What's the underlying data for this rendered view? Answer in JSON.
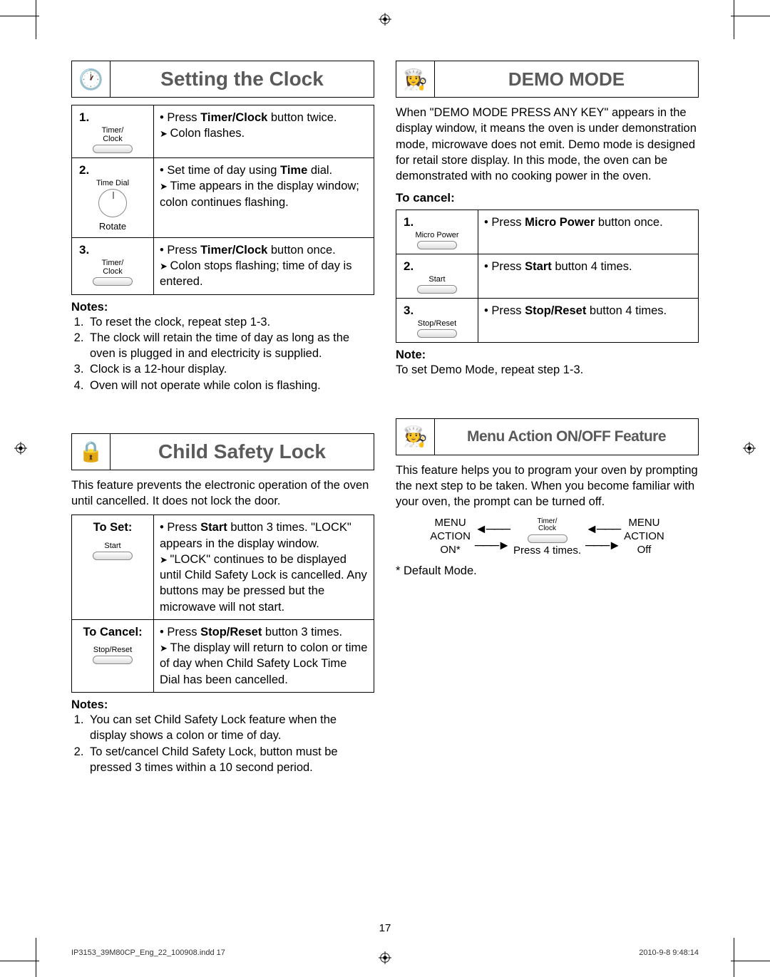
{
  "page_number": "17",
  "footer": {
    "doc": "IP3153_39M80CP_Eng_22_100908.indd   17",
    "stamp": "2010-9-8   9:48:14"
  },
  "colors": {
    "title_gray": "#5a5a5a",
    "border": "#000000",
    "btn_border": "#888888"
  },
  "clock": {
    "title": "Setting the Clock",
    "steps": [
      {
        "num": "1.",
        "control_label": "Timer/\nClock",
        "control_kind": "button",
        "lines": [
          {
            "t": "bullet",
            "text": "Press <b>Timer/Clock</b> button twice."
          },
          {
            "t": "arrow",
            "text": "Colon flashes."
          }
        ]
      },
      {
        "num": "2.",
        "control_label": "Time Dial",
        "control_kind": "dial",
        "control_below": "Rotate",
        "lines": [
          {
            "t": "bullet",
            "text": "Set time of day using <b>Time</b> dial."
          },
          {
            "t": "arrow",
            "text": "Time appears in the display window; colon continues flashing."
          }
        ]
      },
      {
        "num": "3.",
        "control_label": "Timer/\nClock",
        "control_kind": "button",
        "lines": [
          {
            "t": "bullet",
            "text": "Press <b>Timer/Clock</b> button once."
          },
          {
            "t": "arrow",
            "text": "Colon stops flashing; time of day is entered."
          }
        ]
      }
    ],
    "notes_heading": "Notes:",
    "notes": [
      "To reset the clock, repeat step 1-3.",
      "The clock will retain the time of day as long as the oven is plugged in and electricity is supplied.",
      "Clock is a 12-hour display.",
      "Oven will not operate while colon is flashing."
    ]
  },
  "childlock": {
    "title": "Child Safety Lock",
    "intro": "This feature prevents the electronic operation of the oven until cancelled. It does not lock the door.",
    "rows": [
      {
        "head": "To Set:",
        "btn_label": "Start",
        "lines": [
          {
            "t": "bullet",
            "text": "Press <b>Start</b> button 3 times. \"LOCK\" appears in the display window."
          },
          {
            "t": "arrow",
            "text": "\"LOCK\" continues to be displayed until Child Safety Lock is cancelled. Any buttons may be pressed but the microwave will not start."
          }
        ]
      },
      {
        "head": "To Cancel:",
        "btn_label": "Stop/Reset",
        "lines": [
          {
            "t": "bullet",
            "text": "Press <b>Stop/Reset</b> button 3 times."
          },
          {
            "t": "arrow",
            "text": "The display will return to colon or time of day when Child Safety Lock Time Dial has been cancelled."
          }
        ]
      }
    ],
    "notes_heading": "Notes:",
    "notes": [
      "You can set Child Safety Lock feature when the display shows a colon or time of day.",
      "To set/cancel Child Safety Lock, button must be pressed 3 times within a 10 second period."
    ]
  },
  "demo": {
    "title": "DEMO MODE",
    "intro": "When \"DEMO MODE PRESS ANY KEY\" appears in the display window, it means the oven is under demonstration mode, microwave does not emit. Demo mode is designed for retail store display. In this mode, the oven can be demonstrated with no cooking power in the oven.",
    "cancel_heading": "To cancel:",
    "steps": [
      {
        "num": "1.",
        "control_label": "Micro Power",
        "lines": [
          {
            "t": "bullet",
            "text": "Press <b>Micro Power</b> button once."
          }
        ]
      },
      {
        "num": "2.",
        "control_label": "Start",
        "lines": [
          {
            "t": "bullet",
            "text": "Press <b>Start</b> button 4 times."
          }
        ]
      },
      {
        "num": "3.",
        "control_label": "Stop/Reset",
        "lines": [
          {
            "t": "bullet",
            "text": "Press <b>Stop/Reset</b> button 4 times."
          }
        ]
      }
    ],
    "note_heading": "Note:",
    "note_text": "To set Demo Mode, repeat step 1-3."
  },
  "menu": {
    "title": "Menu Action ON/OFF Feature",
    "intro": "This feature helps you to program your oven by prompting the next step to be taken. When you become familiar with your oven, the prompt can be turned off.",
    "left_label_1": "MENU",
    "left_label_2": "ACTION",
    "left_label_3": "ON*",
    "center_top_label": "Timer/\nClock",
    "center_bottom": "Press 4 times.",
    "right_label_1": "MENU",
    "right_label_2": "ACTION",
    "right_label_3": "Off",
    "footnote": "* Default Mode."
  }
}
